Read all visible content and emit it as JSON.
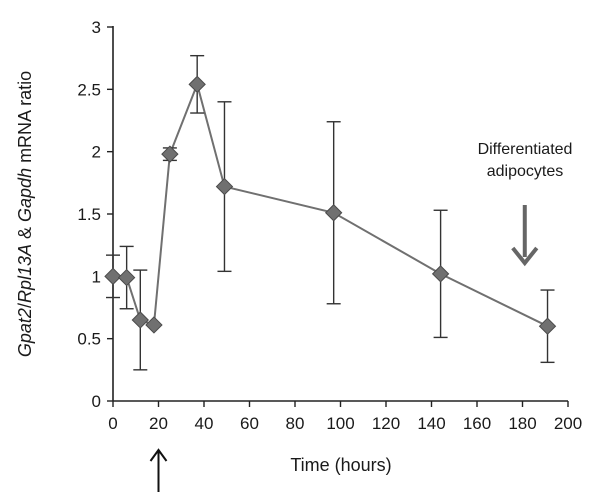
{
  "chart_data": {
    "type": "line",
    "xlabel": "Time (hours)",
    "ylabel_parts": [
      {
        "text": "Gpat2",
        "italic": true
      },
      {
        "text": "/",
        "italic": false
      },
      {
        "text": "Rpl13A",
        "italic": true
      },
      {
        "text": " & ",
        "italic": false
      },
      {
        "text": "Gapdh",
        "italic": true
      },
      {
        "text": " mRNA ratio",
        "italic": false
      }
    ],
    "xlim": [
      0,
      200
    ],
    "ylim": [
      0,
      3
    ],
    "x_ticks": [
      "0",
      "20",
      "40",
      "60",
      "80",
      "100",
      "120",
      "140",
      "160",
      "180",
      "200"
    ],
    "y_ticks": [
      "0",
      "0.5",
      "1",
      "1.5",
      "2",
      "2.5",
      "3"
    ],
    "grid": false,
    "series": [
      {
        "x": [
          0,
          6,
          12,
          18,
          25,
          37,
          49,
          97,
          144,
          191
        ],
        "y": [
          1.0,
          0.99,
          0.65,
          0.61,
          1.98,
          2.54,
          1.72,
          1.51,
          1.02,
          0.6
        ],
        "err": [
          0.17,
          0.25,
          0.4,
          0.0,
          0.05,
          0.23,
          0.68,
          0.73,
          0.51,
          0.29
        ],
        "color": "#707070",
        "marker": "diamond"
      }
    ],
    "annotations": [
      {
        "text_lines": [
          "Differentiated",
          "adipocytes"
        ],
        "x": 181,
        "arrow": "down"
      },
      {
        "text_lines": [],
        "x": 20,
        "arrow": "up"
      }
    ]
  }
}
